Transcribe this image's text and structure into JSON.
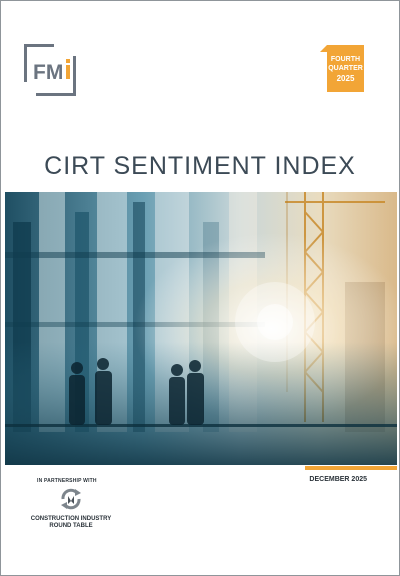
{
  "brand": {
    "logo_text": "FM",
    "logo_color": "#6b7480"
  },
  "badge": {
    "line1": "FOURTH",
    "line2": "QUARTER",
    "year": "2025",
    "color": "#f2a536"
  },
  "title": "CIRT SENTIMENT INDEX",
  "footer": {
    "partner_label": "IN PARTNERSHIP WITH",
    "date": "DECEMBER 2025",
    "partner_line1": "CONSTRUCTION INDUSTRY",
    "partner_line2": "ROUND TABLE"
  },
  "hero_image": {
    "description_icon": "construction-workers-photo"
  }
}
